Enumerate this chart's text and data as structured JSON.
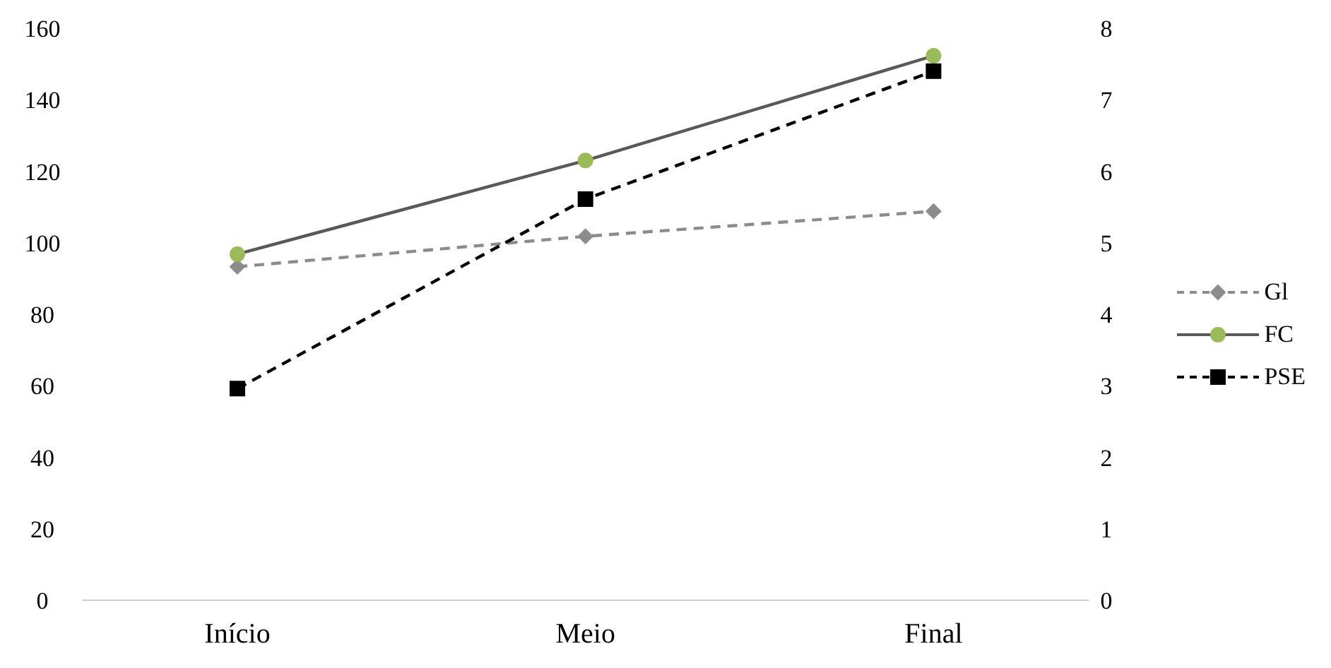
{
  "chart_data": {
    "type": "line",
    "categories": [
      "Início",
      "Meio",
      "Final"
    ],
    "series": [
      {
        "name": "Gl",
        "color": "#8c8c8c",
        "values": [
          93.3,
          101.8,
          108.8
        ],
        "marker": "diamond",
        "line_style": "dashed"
      },
      {
        "name": "FC",
        "color": "#595959",
        "colors": [
          "#9bbb59",
          "#9bbb59",
          "#9bbb59"
        ],
        "values": [
          96.8,
          123,
          152.3
        ],
        "marker": "circle",
        "line_style": "solid"
      },
      {
        "name": "PSE",
        "color": "#000000",
        "values": [
          2.96,
          5.61,
          7.4
        ],
        "marker": "square",
        "line_style": "dashed",
        "axis": "y2"
      }
    ],
    "ylim": [
      0,
      160
    ],
    "yticks": [
      0,
      20,
      40,
      60,
      80,
      100,
      120,
      140,
      160
    ],
    "y2lim": [
      0,
      8
    ],
    "y2ticks": [
      0,
      1,
      2,
      3,
      4,
      5,
      6,
      7,
      8
    ],
    "grid": false,
    "legend": "right"
  }
}
